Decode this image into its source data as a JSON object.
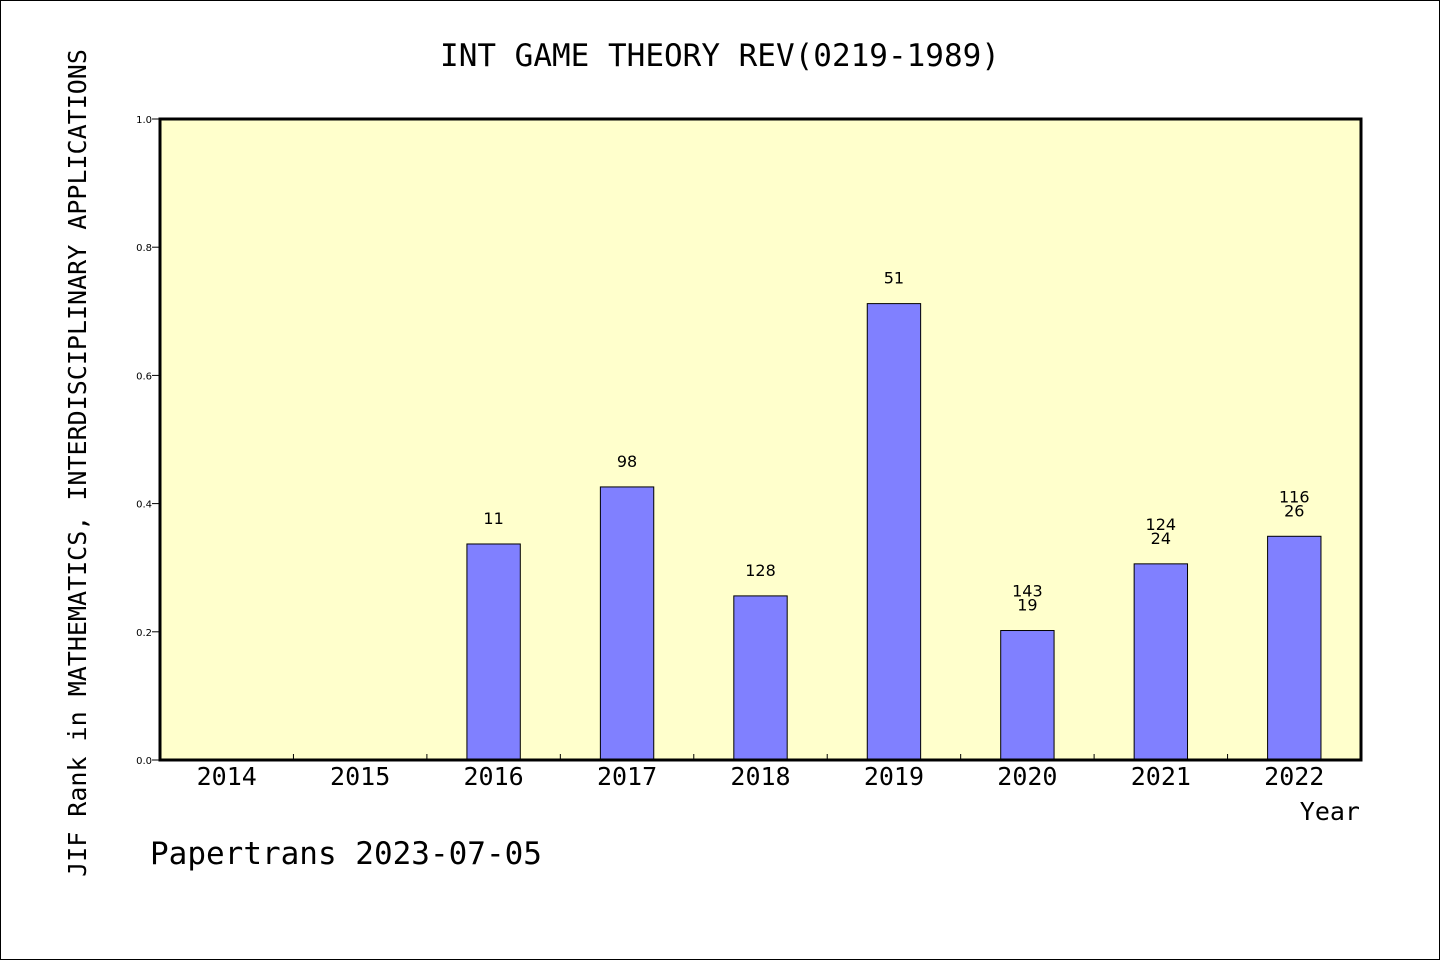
{
  "chart_data": {
    "type": "bar",
    "title": "INT GAME THEORY REV(0219-1989)",
    "xlabel": "Year",
    "ylabel": "JIF Rank in MATHEMATICS,  INTERDISCIPLINARY APPLICATIONS",
    "categories": [
      "2014",
      "2015",
      "2016",
      "2017",
      "2018",
      "2019",
      "2020",
      "2021",
      "2022"
    ],
    "values": [
      null,
      null,
      0.337,
      0.426,
      0.256,
      0.712,
      0.202,
      0.306,
      0.349
    ],
    "bar_labels": [
      [],
      [],
      [
        "11"
      ],
      [
        "98"
      ],
      [
        "128"
      ],
      [
        "51"
      ],
      [
        "143",
        "19"
      ],
      [
        "124",
        "24"
      ],
      [
        "116",
        "26"
      ]
    ],
    "ylim": [
      0,
      1.0
    ],
    "yticks": [
      "0.0",
      "0.2",
      "0.4",
      "0.6",
      "0.8",
      "1.0"
    ],
    "grid": false,
    "colors": {
      "plot_background": "#ffffcc",
      "bar_fill": "#8080ff",
      "bar_stroke": "#000000",
      "frame": "#000000"
    }
  },
  "footer": {
    "text": "Papertrans 2023-07-05"
  }
}
